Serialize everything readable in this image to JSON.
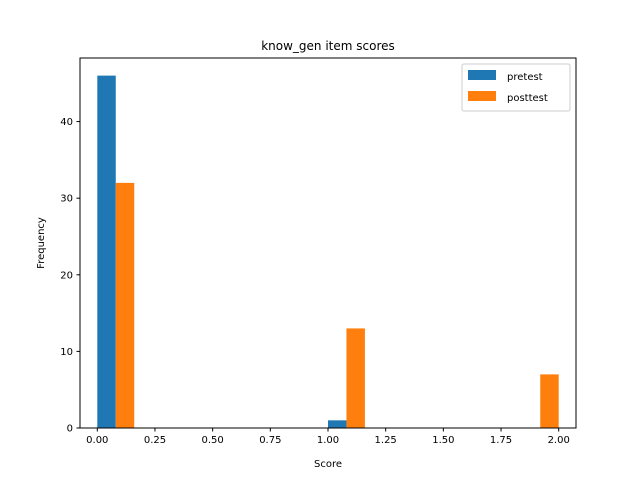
{
  "chart_data": {
    "type": "bar",
    "title": "know_gen item scores",
    "xlabel": "Score",
    "ylabel": "Frequency",
    "xlim": [
      -0.075,
      2.075
    ],
    "ylim": [
      0,
      48.3
    ],
    "xticks": [
      0.0,
      0.25,
      0.5,
      0.75,
      1.0,
      1.25,
      1.5,
      1.75,
      2.0
    ],
    "xtick_labels": [
      "0.00",
      "0.25",
      "0.50",
      "0.75",
      "1.00",
      "1.25",
      "1.50",
      "1.75",
      "2.00"
    ],
    "yticks": [
      0,
      10,
      20,
      30,
      40
    ],
    "ytick_labels": [
      "0",
      "10",
      "20",
      "30",
      "40"
    ],
    "grid": false,
    "legend_position": "top-right",
    "series": [
      {
        "name": "pretest",
        "color": "#1f77b4",
        "bins": [
          {
            "x0": 0.0,
            "x1": 0.08,
            "value": 46
          },
          {
            "x0": 1.0,
            "x1": 1.08,
            "value": 1
          }
        ]
      },
      {
        "name": "posttest",
        "color": "#ff7f0e",
        "bins": [
          {
            "x0": 0.08,
            "x1": 0.16,
            "value": 32
          },
          {
            "x0": 1.08,
            "x1": 1.16,
            "value": 13
          },
          {
            "x0": 1.92,
            "x1": 2.0,
            "value": 7
          }
        ]
      }
    ]
  }
}
